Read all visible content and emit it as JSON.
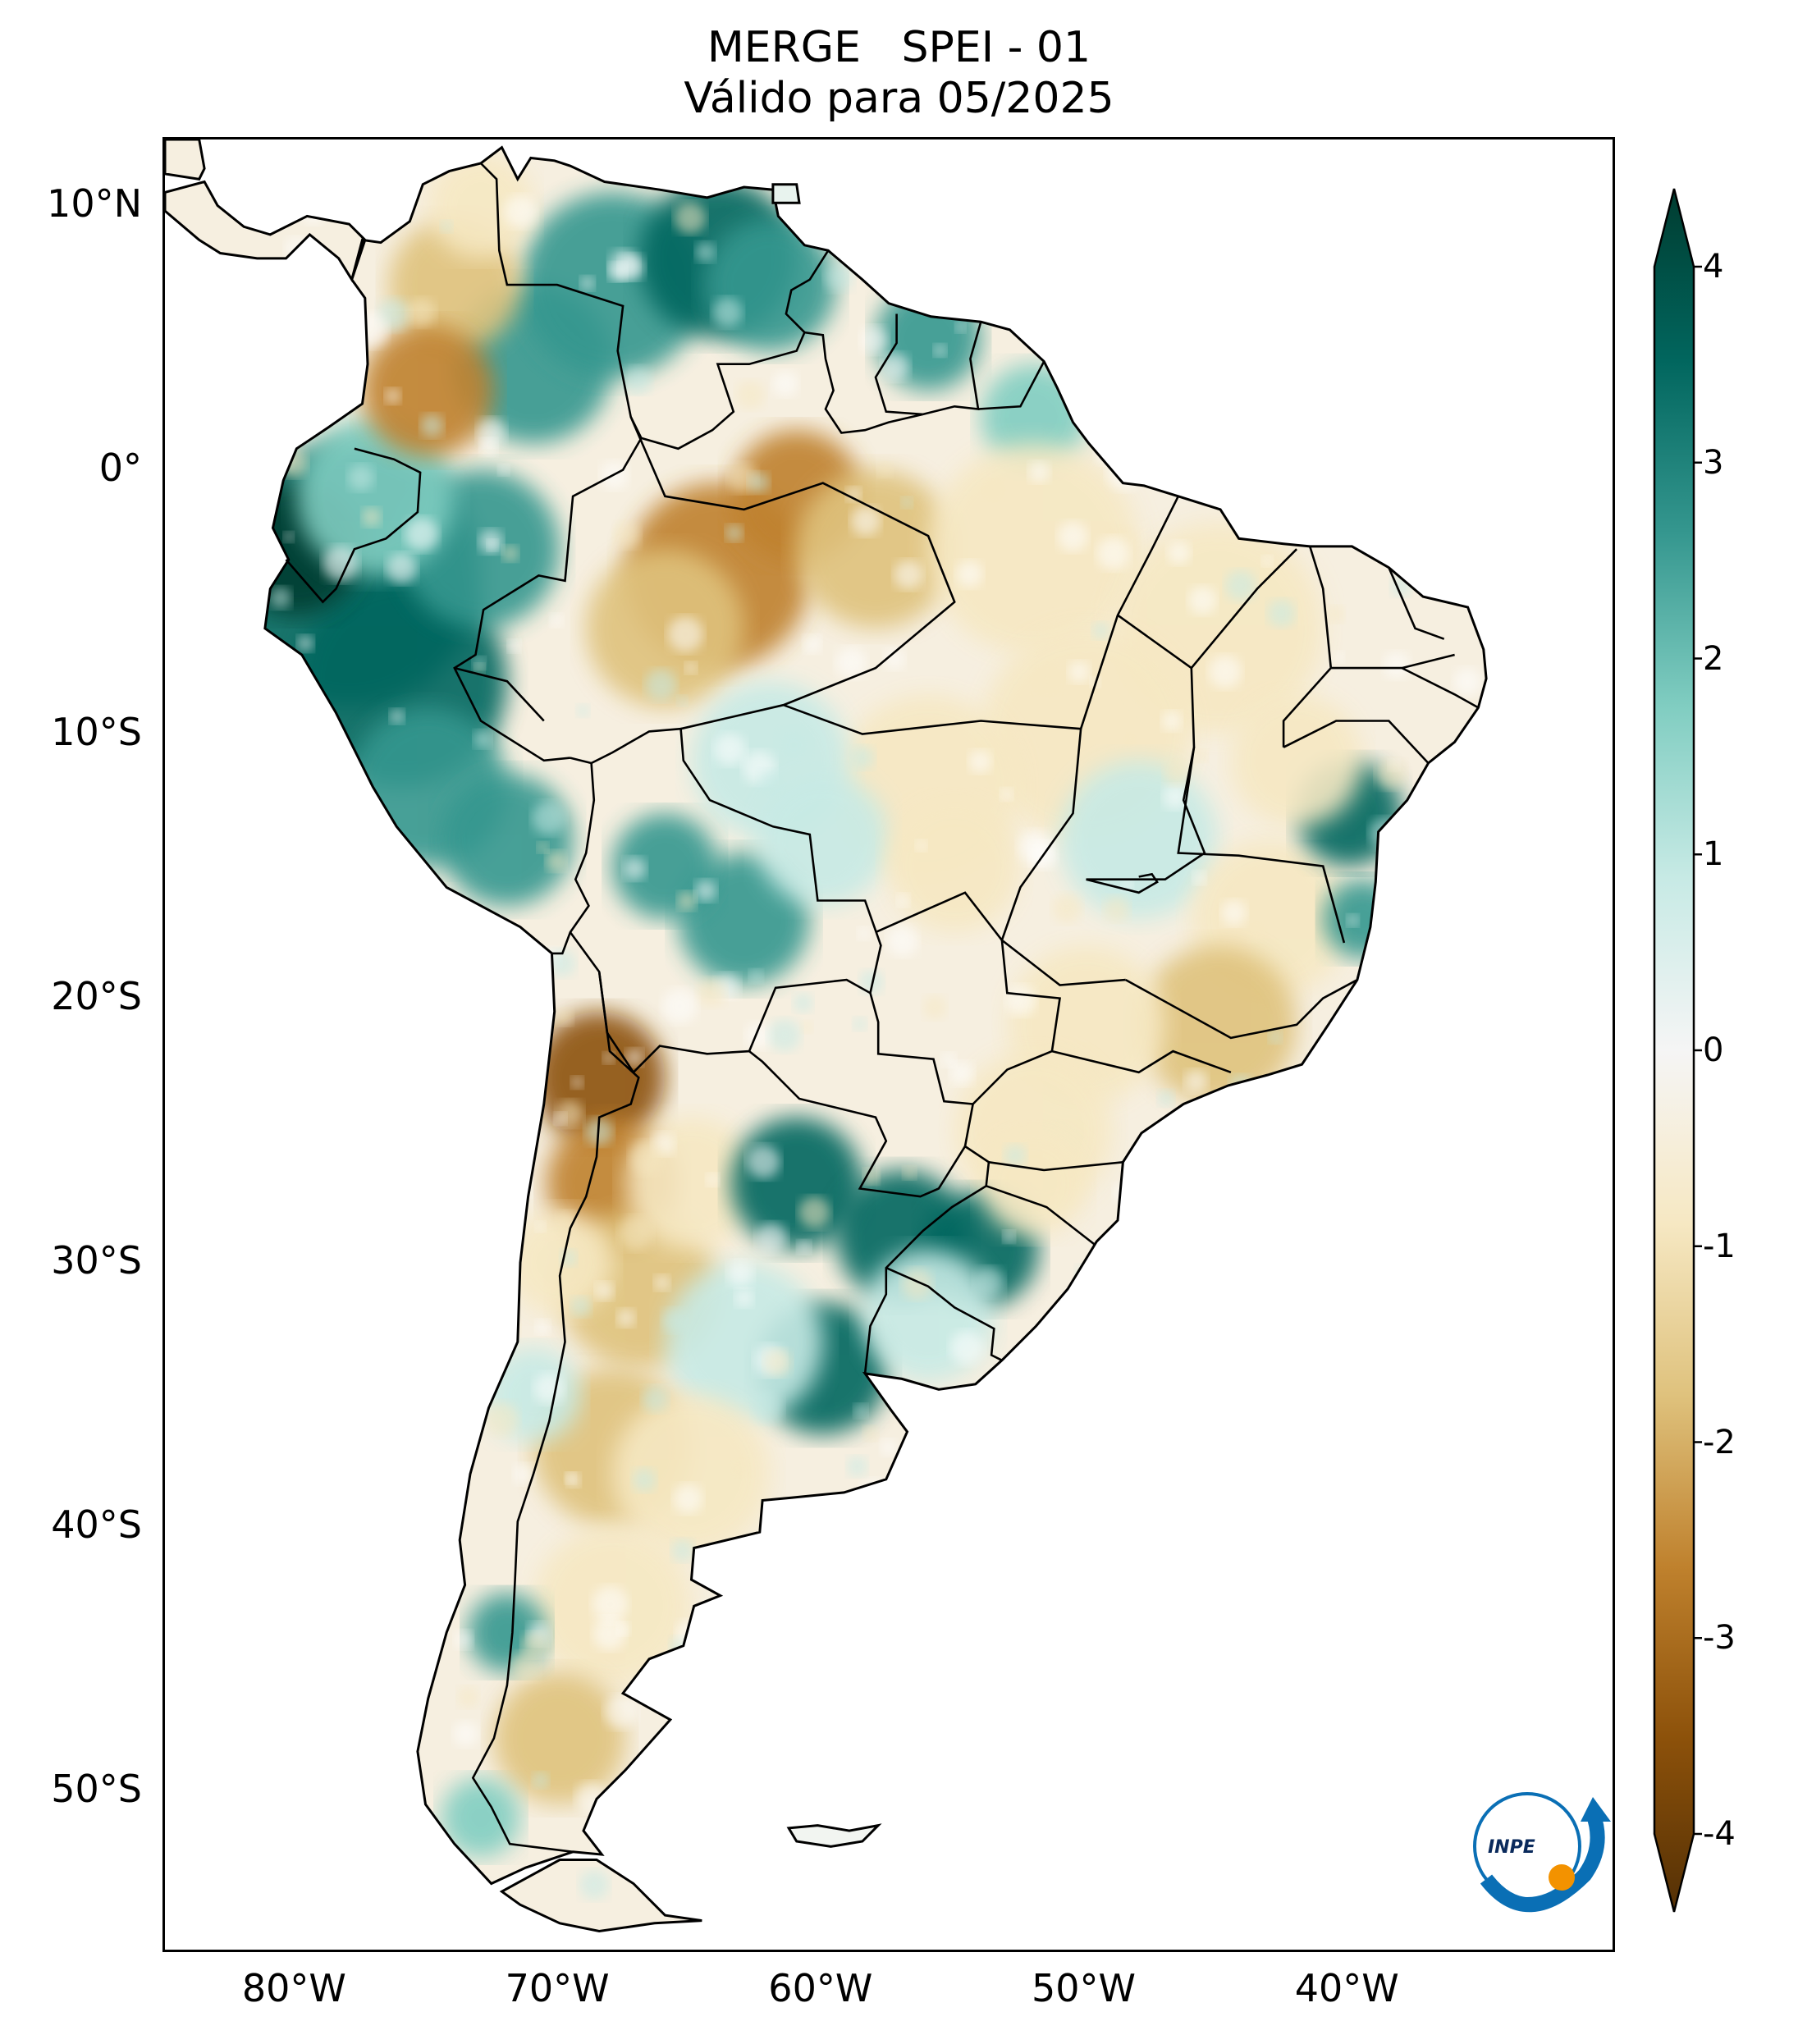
{
  "title": {
    "line1": "MERGE   SPEI - 01",
    "line2": "Válido para 05/2025"
  },
  "map": {
    "projection": "PlateCarree",
    "lon_range": [
      -85,
      -30
    ],
    "lat_range": [
      -56,
      12.5
    ],
    "lat_ticks": [
      {
        "value": 10,
        "label": "10°N"
      },
      {
        "value": 0,
        "label": "0°"
      },
      {
        "value": -10,
        "label": "10°S"
      },
      {
        "value": -20,
        "label": "20°S"
      },
      {
        "value": -30,
        "label": "30°S"
      },
      {
        "value": -40,
        "label": "40°S"
      },
      {
        "value": -50,
        "label": "50°S"
      }
    ],
    "lon_ticks": [
      {
        "value": -80,
        "label": "80°W"
      },
      {
        "value": -70,
        "label": "70°W"
      },
      {
        "value": -60,
        "label": "60°W"
      },
      {
        "value": -50,
        "label": "50°W"
      },
      {
        "value": -40,
        "label": "40°W"
      }
    ]
  },
  "colorbar": {
    "colormap": "BrBG",
    "range": [
      -4,
      4
    ],
    "ticks": [
      "4",
      "3",
      "2",
      "1",
      "0",
      "-1",
      "-2",
      "-3",
      "-4"
    ],
    "colors": {
      "dark_teal": "#003c30",
      "teal": "#01665e",
      "mid_teal": "#35978f",
      "light_teal": "#80cdc1",
      "pale_teal": "#c7eae5",
      "white": "#f5f5f5",
      "pale_tan": "#f6e8c3",
      "tan": "#dfc27d",
      "brown": "#bf812d",
      "dark_brown": "#8c510a",
      "darkest_brown": "#543005"
    }
  },
  "logo": {
    "text": "INPE",
    "colors": {
      "arc": "#0a6fb5",
      "dot": "#f39200"
    }
  }
}
